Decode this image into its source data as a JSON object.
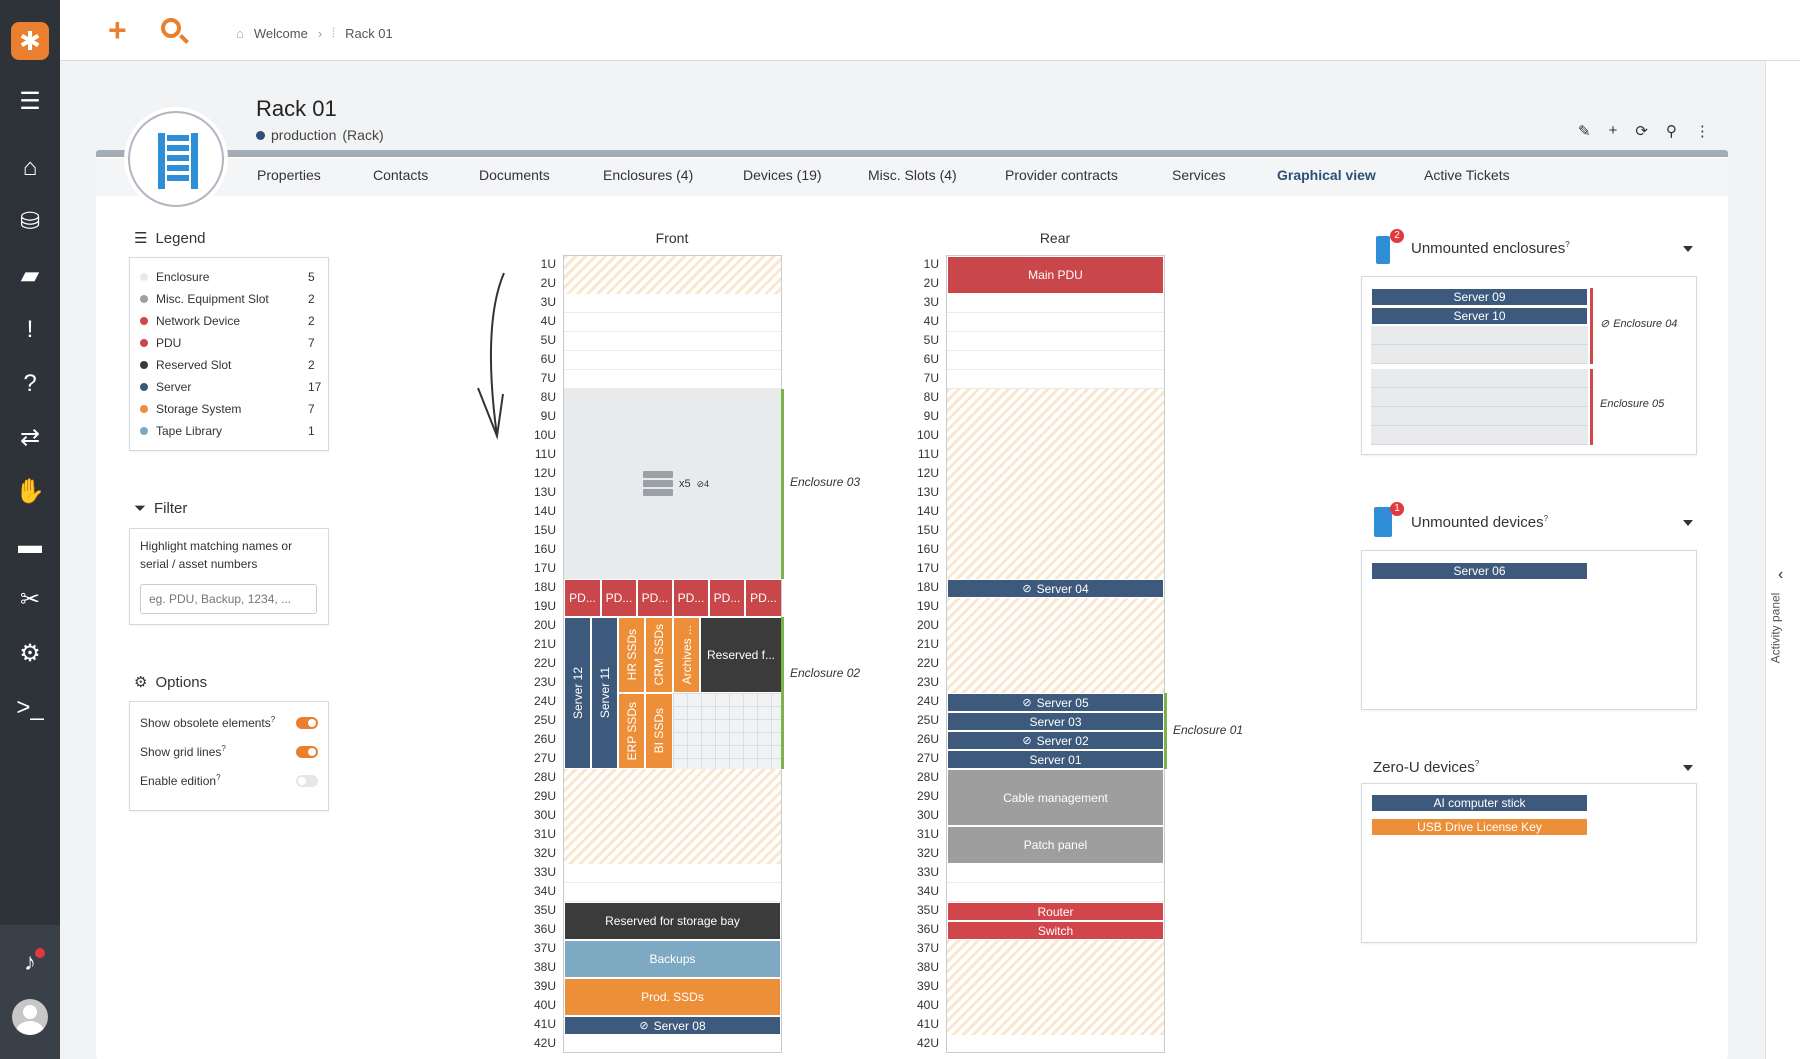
{
  "breadcrumb": {
    "home": "Welcome",
    "current": "Rack 01"
  },
  "header": {
    "title": "Rack 01",
    "status": "production",
    "type": "(Rack)"
  },
  "tabs": [
    "Properties",
    "Contacts",
    "Documents",
    "Enclosures (4)",
    "Devices (19)",
    "Misc. Slots (4)",
    "Provider contracts",
    "Services",
    "Graphical view",
    "Active Tickets"
  ],
  "active_tab": "Graphical view",
  "legend": {
    "title": "Legend",
    "items": [
      {
        "label": "Enclosure",
        "count": "5",
        "color": "#e9eaec"
      },
      {
        "label": "Misc. Equipment Slot",
        "count": "2",
        "color": "#9e9e9e"
      },
      {
        "label": "Network Device",
        "count": "2",
        "color": "#d1464b"
      },
      {
        "label": "PDU",
        "count": "7",
        "color": "#c9474a"
      },
      {
        "label": "Reserved Slot",
        "count": "2",
        "color": "#3b3b3b"
      },
      {
        "label": "Server",
        "count": "17",
        "color": "#3d5a7c"
      },
      {
        "label": "Storage System",
        "count": "7",
        "color": "#ec8f38"
      },
      {
        "label": "Tape Library",
        "count": "1",
        "color": "#7ea9c2"
      }
    ]
  },
  "filter": {
    "title": "Filter",
    "hint": "Highlight matching names or serial / asset numbers",
    "placeholder": "eg. PDU, Backup, 1234, ..."
  },
  "options": {
    "title": "Options",
    "items": [
      {
        "label": "Show obsolete elements",
        "on": true
      },
      {
        "label": "Show grid lines",
        "on": true
      },
      {
        "label": "Enable edition",
        "on": false
      }
    ]
  },
  "front": {
    "title": "Front",
    "enclosure03_label": "Enclosure 03",
    "enclosure03_count": "x5",
    "enclosure03_hidden": "4",
    "enclosure02_label": "Enclosure 02",
    "pdus": [
      "PD...",
      "PD...",
      "PD...",
      "PD...",
      "PD...",
      "PD..."
    ],
    "server12": "Server 12",
    "server11": "Server 11",
    "hr_ssds": "HR SSDs",
    "crm_ssds": "CRM SSDs",
    "archives": "Archives ...",
    "reserved_f": "Reserved f...",
    "erp_ssds": "ERP SSDs",
    "bi_ssds": "BI SSDs",
    "reserved_storage": "Reserved for storage bay",
    "backups": "Backups",
    "prod_ssds": "Prod. SSDs",
    "server08": "Server 08"
  },
  "rear": {
    "title": "Rear",
    "main_pdu": "Main PDU",
    "server04": "Server 04",
    "server05": "Server 05",
    "server03": "Server 03",
    "server02": "Server 02",
    "server01": "Server 01",
    "enclosure01_label": "Enclosure 01",
    "cable_mgmt": "Cable management",
    "patch_panel": "Patch panel",
    "router": "Router",
    "switch": "Switch"
  },
  "unit_labels": [
    "1U",
    "2U",
    "3U",
    "4U",
    "5U",
    "6U",
    "7U",
    "8U",
    "9U",
    "10U",
    "11U",
    "12U",
    "13U",
    "14U",
    "15U",
    "16U",
    "17U",
    "18U",
    "19U",
    "20U",
    "21U",
    "22U",
    "23U",
    "24U",
    "25U",
    "26U",
    "27U",
    "28U",
    "29U",
    "30U",
    "31U",
    "32U",
    "33U",
    "34U",
    "35U",
    "36U",
    "37U",
    "38U",
    "39U",
    "40U",
    "41U",
    "42U"
  ],
  "unmounted_enclosures": {
    "title": "Unmounted enclosures",
    "badge": "2",
    "server09": "Server 09",
    "server10": "Server 10",
    "enc04": "Enclosure 04",
    "enc05": "Enclosure 05"
  },
  "unmounted_devices": {
    "title": "Unmounted devices",
    "badge": "1",
    "server06": "Server 06"
  },
  "zero_u": {
    "title": "Zero-U devices",
    "ai_stick": "AI computer stick",
    "usb_key": "USB Drive License Key"
  },
  "activity_panel": "Activity panel",
  "colors": {
    "accent": "#e97f2f",
    "server": "#3d5a7c",
    "pdu": "#c9474a",
    "storage": "#ec8f38",
    "reserved": "#3b3b3b",
    "tape": "#7ea9c2",
    "misc": "#9e9e9e"
  }
}
